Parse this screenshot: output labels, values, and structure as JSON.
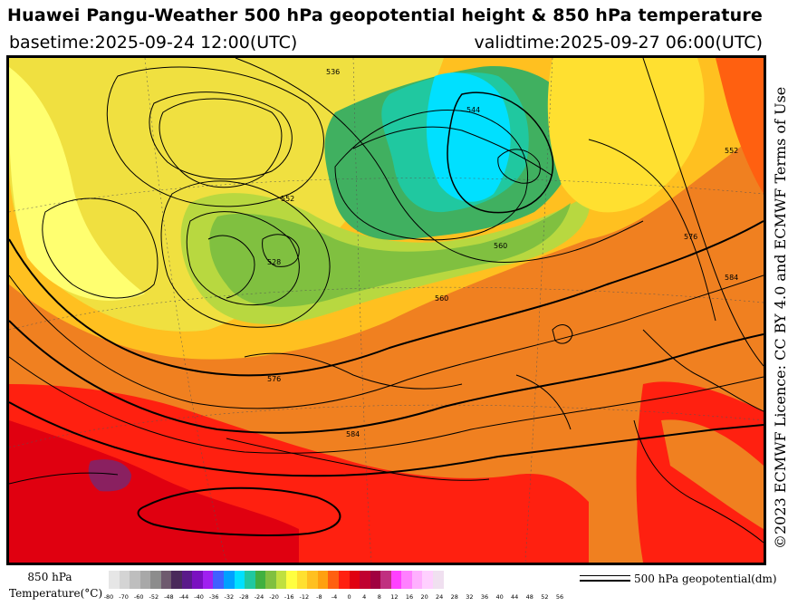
{
  "header": {
    "title": "Huawei Pangu-Weather 500 hPa geopotential height & 850 hPa temperature",
    "basetime": "basetime:2025-09-24 12:00(UTC)",
    "validtime": "validtime:2025-09-27 06:00(UTC)"
  },
  "credit": "©2023 ECMWF Licence: CC BY 4.0 and ECMWF Terms of Use",
  "legend": {
    "title_line1": "850 hPa",
    "title_line2": "Temperature(°C)",
    "ticks": [
      "-80",
      "-70",
      "-60",
      "-52",
      "-48",
      "-44",
      "-40",
      "-36",
      "-32",
      "-28",
      "-24",
      "-20",
      "-16",
      "-12",
      "-8",
      "-4",
      "0",
      "4",
      "8",
      "12",
      "16",
      "20",
      "24",
      "28",
      "32",
      "36",
      "40",
      "44",
      "48",
      "52",
      "56"
    ],
    "colors": [
      "#e6e6e6",
      "#d4d4d4",
      "#bebebe",
      "#a8a8a8",
      "#8c8c8c",
      "#6e5a6e",
      "#4a2a5a",
      "#5a1a8a",
      "#7a10c0",
      "#a020f0",
      "#4060ff",
      "#00a0ff",
      "#00e0ff",
      "#20c8a0",
      "#40b040",
      "#80c040",
      "#c0e040",
      "#ffff40",
      "#ffe030",
      "#ffc020",
      "#ffa010",
      "#ff6010",
      "#ff2010",
      "#e00010",
      "#c00030",
      "#a00040",
      "#c03080",
      "#ff40ff",
      "#ff80ff",
      "#ffb0ff",
      "#ffd0ff",
      "#f0e0f0"
    ],
    "geo_label": "500 hPa geopotential(dm)"
  },
  "map": {
    "contour_labels": [
      "536",
      "552",
      "560",
      "576",
      "584",
      "528",
      "544",
      "552",
      "576",
      "584",
      "560"
    ]
  }
}
